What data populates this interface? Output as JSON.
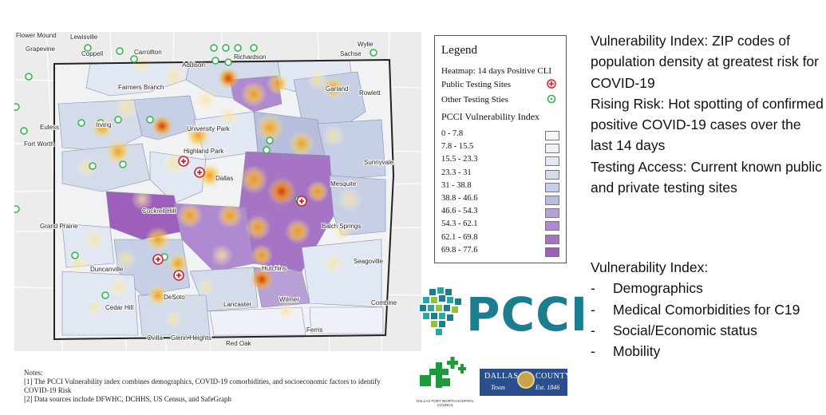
{
  "legend": {
    "title": "Legend",
    "heatmap_label": "Heatmap: 14 days Positive CLI",
    "public_sites_label": "Public Testing Sites",
    "other_sites_label": "Other Testing Sties",
    "index_title": "PCCI Vulnerability Index",
    "classes": [
      {
        "label": "0 - 7.8",
        "color": "#f6f8fc"
      },
      {
        "label": "7.8 - 15.5",
        "color": "#eef2f8"
      },
      {
        "label": "15.5 - 23.3",
        "color": "#e2e8f3"
      },
      {
        "label": "23.3 - 31",
        "color": "#d4dcec"
      },
      {
        "label": "31 - 38.8",
        "color": "#c6cfe6"
      },
      {
        "label": "38.8 - 46.6",
        "color": "#b7bedd"
      },
      {
        "label": "46.6 - 54.3",
        "color": "#b9a0d6"
      },
      {
        "label": "54.3 - 62.1",
        "color": "#b08ad0"
      },
      {
        "label": "62.1 - 69.8",
        "color": "#a674c4"
      },
      {
        "label": "69.8 - 77.6",
        "color": "#9c5fba"
      }
    ]
  },
  "map": {
    "places": [
      "Flower Mound",
      "Lewisville",
      "Grapevine",
      "Coppell",
      "Carrollton",
      "Addison",
      "Richardson",
      "Sachse",
      "Wylie",
      "Farmers Branch",
      "Garland",
      "Rowlett",
      "Irving",
      "University Park",
      "Euless",
      "Fort Worth",
      "Highland Park",
      "Dallas",
      "Sunnyvale",
      "Mesquite",
      "Grand Prairie",
      "Cockrell Hill",
      "Balch Springs",
      "Seagoville",
      "Duncanville",
      "DeSoto",
      "Hutchins",
      "Lancaster",
      "Wilmer",
      "Cedar Hill",
      "Combine",
      "Ferris",
      "Ovilla",
      "Glenn Heights",
      "Red Oak"
    ],
    "colors": {
      "hotspot": "#f0a020",
      "hotspot_core": "#d9540a",
      "public_site": "#d4202a",
      "other_site": "#2fb54a"
    }
  },
  "notes": {
    "heading": "Notes:",
    "line1": "[1] The PCCI Vulnerability index combines demographics, COVID-19 comorbidities, and socioeconomic factors to identify",
    "line1b": "COVID-19 Risk",
    "line2": "[2] Data sources include DFWHC, DCHHS, US Census, and SafeGraph"
  },
  "description": {
    "vi_label": "Vulnerability Index:",
    "vi_text": "ZIP codes of population density at greatest risk for COVID-19",
    "rr_label": "Rising Risk:",
    "rr_text": "Hot spotting of confirmed positive COVID-19 cases over the last 14 days",
    "ta_label": "Testing Access:",
    "ta_text": "Current known public and private testing sites"
  },
  "components": {
    "title": "Vulnerability Index:",
    "dash": "-",
    "items": [
      "Demographics",
      "Medical Comorbidities for C19",
      "Social/Economic status",
      "Mobility"
    ]
  },
  "logos": {
    "pcci": "PCCI",
    "dfw_caption": "DALLAS FORT WORTH HOSPITAL COUNCIL",
    "dallas_word": "DALLAS",
    "county_word": "COUNTY",
    "texas_word": "Texas",
    "est_word": "Est. 1846"
  }
}
